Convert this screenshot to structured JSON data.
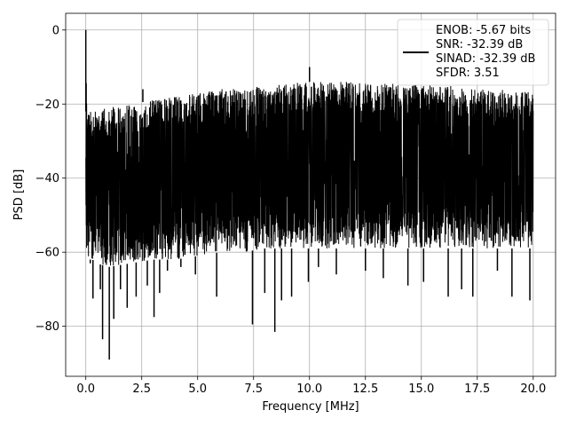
{
  "chart_data": {
    "type": "line",
    "xlabel": "Frequency [MHz]",
    "ylabel": "PSD [dB]",
    "xlim": [
      -0.9,
      21.0
    ],
    "ylim": [
      -93.5,
      4.5
    ],
    "xticks": [
      0.0,
      2.5,
      5.0,
      7.5,
      10.0,
      12.5,
      15.0,
      17.5,
      20.0
    ],
    "xtick_labels": [
      "0.0",
      "2.5",
      "5.0",
      "7.5",
      "10.0",
      "12.5",
      "15.0",
      "17.5",
      "20.0"
    ],
    "yticks": [
      0,
      -20,
      -40,
      -60,
      -80
    ],
    "ytick_labels": [
      "0",
      "−20",
      "−40",
      "−60",
      "−80"
    ],
    "grid": true,
    "legend_position": "top-right",
    "series_color": "#000000",
    "legend": [
      "ENOB: -5.67 bits",
      "SNR: -32.39 dB",
      "SINAD: -32.39 dB",
      "SFDR: 3.51"
    ],
    "series": [
      {
        "x": [
          0.0,
          0.02,
          0.05,
          0.1,
          0.3,
          0.5,
          1.0,
          2.0,
          3.0,
          4.0,
          5.0,
          6.0,
          7.0,
          8.0,
          9.0,
          10.0,
          11.0,
          12.0,
          13.0,
          14.0,
          15.0,
          16.0,
          17.0,
          18.0,
          19.0,
          20.0
        ],
        "y_upper": [
          -22,
          0,
          -15,
          -22,
          -22,
          -21,
          -21,
          -20,
          -19,
          -18,
          -17,
          -16,
          -15.5,
          -15,
          -14.5,
          -14,
          -14,
          -14,
          -14.5,
          -14.5,
          -14.5,
          -15,
          -15.5,
          -16,
          -16,
          -17
        ],
        "y_lower": [
          -56,
          -60,
          -62,
          -62,
          -62,
          -63,
          -64,
          -63,
          -62,
          -62,
          -61,
          -60,
          -60,
          -59,
          -59,
          -59,
          -59,
          -59,
          -59,
          -59,
          -59,
          -59,
          -59,
          -59,
          -59,
          -59
        ]
      }
    ],
    "peaks": [
      {
        "x": 0.0,
        "y": 0.0
      },
      {
        "x": 2.55,
        "y": -16
      },
      {
        "x": 10.0,
        "y": -10
      }
    ],
    "dips": [
      {
        "x": 0.2,
        "y": -63
      },
      {
        "x": 0.32,
        "y": -72.5
      },
      {
        "x": 0.65,
        "y": -70
      },
      {
        "x": 0.75,
        "y": -83.5
      },
      {
        "x": 1.05,
        "y": -89
      },
      {
        "x": 1.25,
        "y": -78
      },
      {
        "x": 1.55,
        "y": -70
      },
      {
        "x": 1.85,
        "y": -75
      },
      {
        "x": 2.25,
        "y": -72
      },
      {
        "x": 2.75,
        "y": -69
      },
      {
        "x": 3.05,
        "y": -77.5
      },
      {
        "x": 3.3,
        "y": -71
      },
      {
        "x": 3.65,
        "y": -65
      },
      {
        "x": 4.25,
        "y": -64
      },
      {
        "x": 4.9,
        "y": -66
      },
      {
        "x": 5.85,
        "y": -72
      },
      {
        "x": 7.45,
        "y": -79.5
      },
      {
        "x": 8.0,
        "y": -71
      },
      {
        "x": 8.45,
        "y": -81.5
      },
      {
        "x": 8.75,
        "y": -73
      },
      {
        "x": 9.2,
        "y": -72
      },
      {
        "x": 9.95,
        "y": -68
      },
      {
        "x": 10.4,
        "y": -64
      },
      {
        "x": 11.2,
        "y": -66
      },
      {
        "x": 12.5,
        "y": -65
      },
      {
        "x": 13.3,
        "y": -67
      },
      {
        "x": 14.4,
        "y": -69
      },
      {
        "x": 15.1,
        "y": -68
      },
      {
        "x": 16.2,
        "y": -72
      },
      {
        "x": 16.8,
        "y": -70
      },
      {
        "x": 17.3,
        "y": -72
      },
      {
        "x": 18.4,
        "y": -65
      },
      {
        "x": 19.05,
        "y": -72
      },
      {
        "x": 19.85,
        "y": -73
      }
    ]
  }
}
